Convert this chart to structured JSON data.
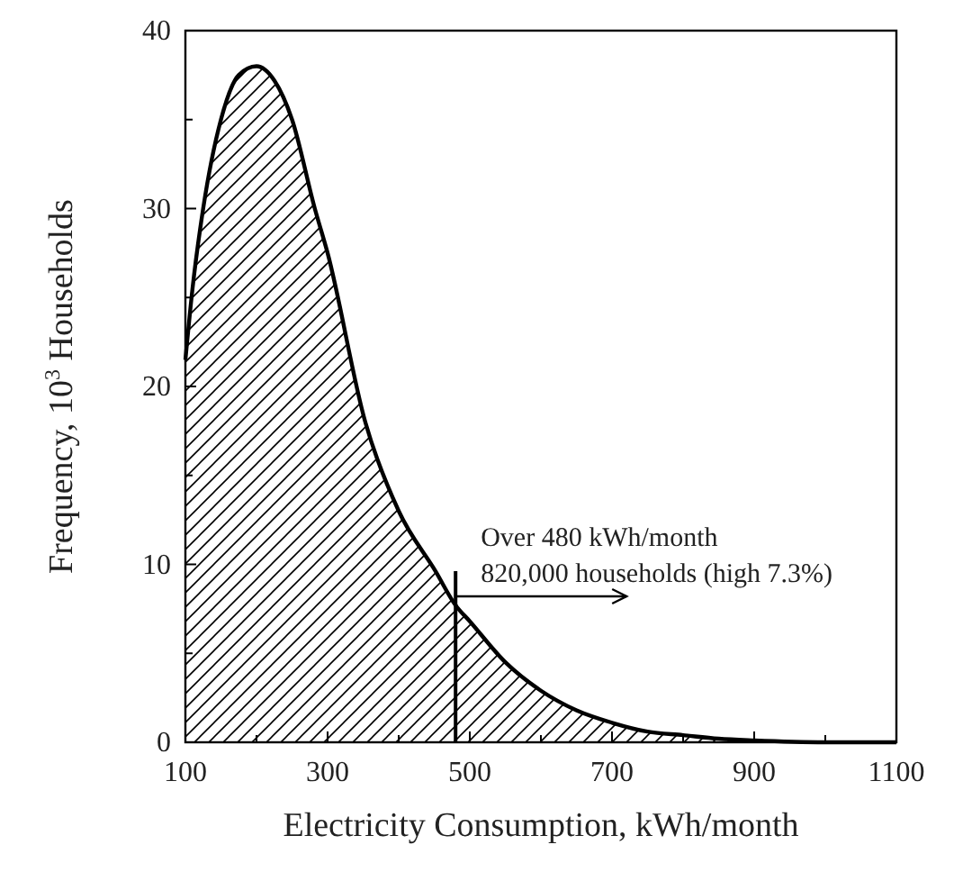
{
  "chart_data": {
    "type": "area",
    "xlabel": "Electricity Consumption, kWh/month",
    "ylabel": "Frequency, 10$^{3}$ Households",
    "x": [
      100,
      110,
      125,
      150,
      175,
      200,
      225,
      250,
      282,
      300,
      353,
      400,
      452,
      480,
      500,
      550,
      600,
      650,
      700,
      750,
      800,
      850,
      900,
      1000,
      1100
    ],
    "values": [
      21.5,
      25.5,
      30,
      35,
      37.5,
      38,
      37.2,
      35,
      30,
      27.5,
      18,
      13,
      9.6,
      7.7,
      6.8,
      4.5,
      2.9,
      1.8,
      1.1,
      0.6,
      0.4,
      0.2,
      0.1,
      0,
      0
    ],
    "color": "#000000",
    "xlim": [
      100,
      1100
    ],
    "xticks": [
      100,
      {
        "value": 200,
        "label": null
      },
      300,
      {
        "value": 400,
        "label": null
      },
      500,
      {
        "value": 600,
        "label": null
      },
      700,
      {
        "value": 800,
        "label": null
      },
      900,
      {
        "value": 1000,
        "label": null
      },
      1100
    ],
    "ylim": [
      0,
      40
    ],
    "yticks": [
      0,
      {
        "value": 5,
        "label": null
      },
      10,
      {
        "value": 15,
        "label": null
      },
      20,
      {
        "value": 25,
        "label": null
      },
      30,
      {
        "value": 35,
        "label": null
      },
      40
    ],
    "annotations": [
      {
        "text": "Over 480 kWh/month\n820,000 households (high 7.3%)",
        "x": 480,
        "y": 8.2
      }
    ],
    "grid": false
  }
}
